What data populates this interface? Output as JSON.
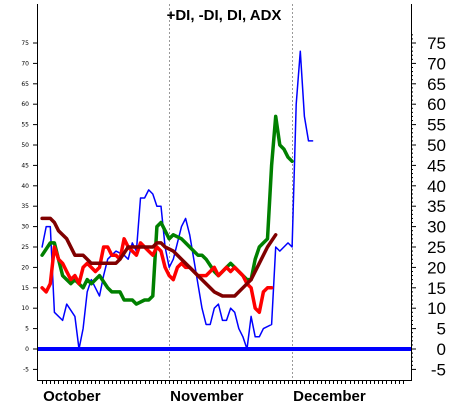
{
  "chart_data": {
    "type": "line",
    "title": "+DI, -DI, DI, ADX",
    "xlabel": "",
    "ylabel": "",
    "ylim": [
      -7,
      79
    ],
    "y_ticks": [
      -5,
      0,
      5,
      10,
      15,
      20,
      25,
      30,
      35,
      40,
      45,
      50,
      55,
      60,
      65,
      70,
      75
    ],
    "x_labels": [
      "October",
      "November",
      "December"
    ],
    "x_label_days": [
      0,
      31,
      61
    ],
    "grid_days": [
      31,
      61
    ],
    "x_range": [
      -1,
      90
    ],
    "legend": "none",
    "series": [
      {
        "color": "#0000ff",
        "points": [
          [
            0,
            25
          ],
          [
            1,
            30
          ],
          [
            2,
            30
          ],
          [
            3,
            9
          ],
          [
            5,
            7
          ],
          [
            6,
            11
          ],
          [
            8,
            8
          ],
          [
            9,
            0
          ],
          [
            10,
            5
          ],
          [
            11,
            14
          ],
          [
            12,
            17
          ],
          [
            13,
            15
          ],
          [
            14,
            13
          ],
          [
            15,
            18
          ],
          [
            16,
            22
          ],
          [
            18,
            24
          ],
          [
            20,
            23
          ],
          [
            21,
            22
          ],
          [
            22,
            26
          ],
          [
            23,
            24
          ],
          [
            24,
            37
          ],
          [
            25,
            37
          ],
          [
            26,
            39
          ],
          [
            27,
            38
          ],
          [
            28,
            35
          ],
          [
            29,
            35
          ],
          [
            30,
            25
          ],
          [
            31,
            20
          ],
          [
            32,
            22
          ],
          [
            33,
            26
          ],
          [
            34,
            30
          ],
          [
            35,
            32
          ],
          [
            36,
            28
          ],
          [
            37,
            22
          ],
          [
            38,
            16
          ],
          [
            39,
            10
          ],
          [
            40,
            6
          ],
          [
            41,
            6
          ],
          [
            42,
            10
          ],
          [
            43,
            11
          ],
          [
            44,
            7
          ],
          [
            45,
            7
          ],
          [
            46,
            10
          ],
          [
            47,
            9
          ],
          [
            48,
            5
          ],
          [
            49,
            3
          ],
          [
            50,
            0
          ],
          [
            51,
            8
          ],
          [
            52,
            3
          ],
          [
            53,
            3
          ],
          [
            54,
            5
          ],
          [
            56,
            6
          ],
          [
            57,
            25
          ],
          [
            58,
            24
          ],
          [
            59,
            25
          ],
          [
            60,
            26
          ],
          [
            61,
            25
          ],
          [
            62,
            60
          ],
          [
            63,
            73
          ],
          [
            64,
            57
          ],
          [
            65,
            51
          ],
          [
            66,
            51
          ]
        ]
      },
      {
        "color": "#008000",
        "points": [
          [
            0,
            23
          ],
          [
            2,
            26
          ],
          [
            3,
            26
          ],
          [
            5,
            18
          ],
          [
            6,
            17
          ],
          [
            7,
            16
          ],
          [
            8,
            17
          ],
          [
            10,
            15
          ],
          [
            11,
            17
          ],
          [
            12,
            16
          ],
          [
            14,
            18
          ],
          [
            16,
            15
          ],
          [
            17,
            14
          ],
          [
            19,
            14
          ],
          [
            20,
            12
          ],
          [
            22,
            12
          ],
          [
            23,
            11
          ],
          [
            25,
            12
          ],
          [
            26,
            12
          ],
          [
            27,
            13
          ],
          [
            28,
            30
          ],
          [
            29,
            31
          ],
          [
            30,
            29
          ],
          [
            31,
            27
          ],
          [
            32,
            28
          ],
          [
            34,
            27
          ],
          [
            35,
            26
          ],
          [
            36,
            25
          ],
          [
            38,
            23
          ],
          [
            39,
            23
          ],
          [
            40,
            22
          ],
          [
            42,
            19
          ],
          [
            43,
            18
          ],
          [
            44,
            19
          ],
          [
            45,
            20
          ],
          [
            46,
            21
          ],
          [
            47,
            20
          ],
          [
            49,
            18
          ],
          [
            50,
            17
          ],
          [
            51,
            17
          ],
          [
            52,
            22
          ],
          [
            53,
            25
          ],
          [
            54,
            26
          ],
          [
            55,
            27
          ],
          [
            56,
            45
          ],
          [
            57,
            57
          ],
          [
            58,
            50
          ],
          [
            59,
            49
          ],
          [
            60,
            47
          ],
          [
            61,
            46
          ]
        ]
      },
      {
        "color": "#ff0000",
        "points": [
          [
            0,
            15
          ],
          [
            1,
            14
          ],
          [
            2,
            16
          ],
          [
            3,
            25
          ],
          [
            4,
            22
          ],
          [
            5,
            21
          ],
          [
            6,
            19
          ],
          [
            7,
            17
          ],
          [
            8,
            18
          ],
          [
            9,
            16
          ],
          [
            10,
            20
          ],
          [
            11,
            21
          ],
          [
            12,
            20
          ],
          [
            13,
            19
          ],
          [
            14,
            20
          ],
          [
            15,
            25
          ],
          [
            16,
            25
          ],
          [
            17,
            23
          ],
          [
            18,
            23
          ],
          [
            19,
            22
          ],
          [
            20,
            27
          ],
          [
            21,
            25
          ],
          [
            22,
            24
          ],
          [
            23,
            23
          ],
          [
            24,
            26
          ],
          [
            25,
            25
          ],
          [
            26,
            24
          ],
          [
            27,
            23
          ],
          [
            28,
            25
          ],
          [
            29,
            24
          ],
          [
            30,
            20
          ],
          [
            31,
            18
          ],
          [
            32,
            17
          ],
          [
            33,
            20
          ],
          [
            34,
            21
          ],
          [
            35,
            20
          ],
          [
            36,
            20
          ],
          [
            37,
            19
          ],
          [
            38,
            18
          ],
          [
            39,
            18
          ],
          [
            40,
            18
          ],
          [
            41,
            19
          ],
          [
            42,
            20
          ],
          [
            43,
            18
          ],
          [
            44,
            19
          ],
          [
            45,
            20
          ],
          [
            46,
            19
          ],
          [
            47,
            20
          ],
          [
            48,
            19
          ],
          [
            49,
            18
          ],
          [
            50,
            16
          ],
          [
            51,
            15
          ],
          [
            52,
            10
          ],
          [
            53,
            9
          ],
          [
            54,
            14
          ],
          [
            55,
            15
          ],
          [
            56,
            15
          ]
        ]
      },
      {
        "color": "#800000",
        "points": [
          [
            0,
            32
          ],
          [
            2,
            32
          ],
          [
            3,
            31
          ],
          [
            4,
            29
          ],
          [
            6,
            27
          ],
          [
            8,
            23
          ],
          [
            9,
            23
          ],
          [
            10,
            23
          ],
          [
            11,
            22
          ],
          [
            12,
            21
          ],
          [
            14,
            21
          ],
          [
            16,
            21
          ],
          [
            18,
            21
          ],
          [
            19,
            22
          ],
          [
            21,
            25
          ],
          [
            23,
            25
          ],
          [
            25,
            25
          ],
          [
            27,
            25
          ],
          [
            28,
            26
          ],
          [
            29,
            26
          ],
          [
            30,
            25
          ],
          [
            32,
            24
          ],
          [
            34,
            22
          ],
          [
            36,
            20
          ],
          [
            38,
            18
          ],
          [
            40,
            16
          ],
          [
            42,
            14
          ],
          [
            44,
            13
          ],
          [
            45,
            13
          ],
          [
            47,
            13
          ],
          [
            49,
            15
          ],
          [
            51,
            17
          ],
          [
            53,
            21
          ],
          [
            55,
            25
          ],
          [
            57,
            28
          ]
        ]
      }
    ],
    "baseline": {
      "y": 0,
      "color": "#0000ff"
    }
  }
}
